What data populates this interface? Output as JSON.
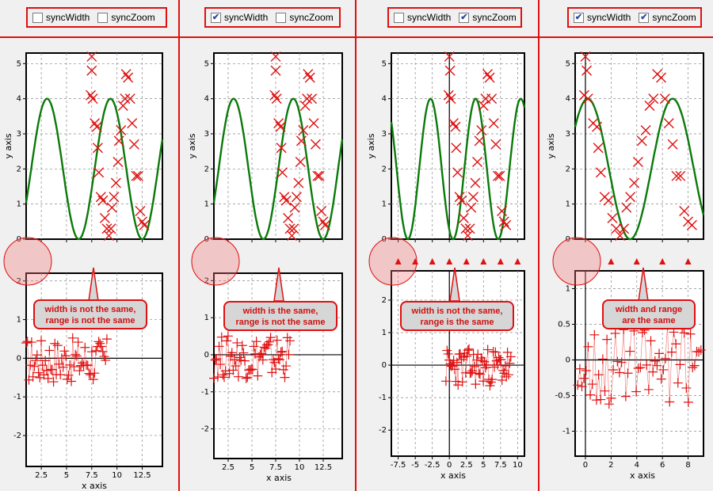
{
  "controls": [
    {
      "syncWidth_label": "syncWidth",
      "syncWidth": false,
      "syncZoom_label": "syncZoom",
      "syncZoom": false
    },
    {
      "syncWidth_label": "syncWidth",
      "syncWidth": true,
      "syncZoom_label": "syncZoom",
      "syncZoom": false
    },
    {
      "syncWidth_label": "syncWidth",
      "syncWidth": false,
      "syncZoom_label": "syncZoom",
      "syncZoom": true
    },
    {
      "syncWidth_label": "syncWidth",
      "syncWidth": true,
      "syncZoom_label": "syncZoom",
      "syncZoom": true
    }
  ],
  "callouts": [
    {
      "line1": "width is not the same,",
      "line2": "range is not the same"
    },
    {
      "line1": "width is the same,",
      "line2": "range is not the same"
    },
    {
      "line1": "width is not the same,",
      "line2": "range is the same"
    },
    {
      "line1": "width and range",
      "line2": "are the same"
    }
  ],
  "colors": {
    "curve": "#0a7a0a",
    "markers": "#e01010",
    "grid": "#888888",
    "highlight": "#e01010"
  },
  "chart_data": [
    {
      "type": "line",
      "panel": 1,
      "top": {
        "xlabel": "",
        "ylabel": "y axis",
        "xlim": [
          1,
          14.5
        ],
        "ylim": [
          0,
          5.3
        ],
        "yticks": [
          0,
          1,
          2,
          3,
          4,
          5
        ],
        "series": [
          {
            "kind": "line",
            "formula": "2+2*sin(x-1.5)"
          },
          {
            "kind": "scatter",
            "points": [
              [
                7.5,
                5.2
              ],
              [
                7.5,
                4.8
              ],
              [
                7.4,
                4.1
              ],
              [
                7.6,
                4.0
              ],
              [
                7.8,
                3.3
              ],
              [
                8.0,
                3.2
              ],
              [
                8.1,
                2.6
              ],
              [
                8.2,
                1.9
              ],
              [
                8.4,
                1.2
              ],
              [
                8.6,
                1.1
              ],
              [
                8.8,
                0.6
              ],
              [
                9.0,
                0.3
              ],
              [
                9.2,
                0.1
              ],
              [
                9.4,
                0.3
              ],
              [
                9.5,
                0.9
              ],
              [
                9.7,
                1.2
              ],
              [
                9.9,
                1.6
              ],
              [
                10.1,
                2.2
              ],
              [
                10.2,
                2.8
              ],
              [
                10.4,
                3.1
              ],
              [
                10.6,
                3.8
              ],
              [
                10.8,
                4.0
              ],
              [
                10.9,
                4.7
              ],
              [
                11.1,
                4.6
              ],
              [
                11.3,
                4.0
              ],
              [
                11.5,
                3.3
              ],
              [
                11.7,
                2.7
              ],
              [
                11.9,
                1.8
              ],
              [
                12.1,
                1.8
              ],
              [
                12.3,
                0.8
              ],
              [
                12.5,
                0.5
              ],
              [
                12.7,
                0.4
              ]
            ]
          }
        ]
      },
      "bottom": {
        "xlabel": "x axis",
        "ylabel": "",
        "xlim": [
          1,
          14.5
        ],
        "ylim": [
          -2.8,
          2.2
        ],
        "xticks": [
          2.5,
          5,
          7.5,
          10,
          12.5
        ],
        "yticks": [
          -2,
          -1,
          0,
          1,
          2
        ],
        "series": [
          {
            "kind": "noise",
            "xrange": [
              1,
              9
            ],
            "amp": 0.9
          }
        ]
      }
    },
    {
      "type": "line",
      "panel": 2,
      "top": {
        "xlabel": "",
        "ylabel": "y axis",
        "xlim": [
          1,
          14.5
        ],
        "ylim": [
          0,
          5.3
        ],
        "yticks": [
          0,
          1,
          2,
          3,
          4,
          5
        ],
        "series": [
          {
            "kind": "line",
            "formula": "2+2*sin(x-1.5)"
          },
          {
            "kind": "scatter",
            "points": [
              [
                7.5,
                5.2
              ],
              [
                7.5,
                4.8
              ],
              [
                7.4,
                4.1
              ],
              [
                7.6,
                4.0
              ],
              [
                7.8,
                3.3
              ],
              [
                8.0,
                3.2
              ],
              [
                8.1,
                2.6
              ],
              [
                8.2,
                1.9
              ],
              [
                8.4,
                1.2
              ],
              [
                8.6,
                1.1
              ],
              [
                8.8,
                0.6
              ],
              [
                9.0,
                0.3
              ],
              [
                9.2,
                0.1
              ],
              [
                9.4,
                0.3
              ],
              [
                9.5,
                0.9
              ],
              [
                9.7,
                1.2
              ],
              [
                9.9,
                1.6
              ],
              [
                10.1,
                2.2
              ],
              [
                10.2,
                2.8
              ],
              [
                10.4,
                3.1
              ],
              [
                10.6,
                3.8
              ],
              [
                10.8,
                4.0
              ],
              [
                10.9,
                4.7
              ],
              [
                11.1,
                4.6
              ],
              [
                11.3,
                4.0
              ],
              [
                11.5,
                3.3
              ],
              [
                11.7,
                2.7
              ],
              [
                11.9,
                1.8
              ],
              [
                12.1,
                1.8
              ],
              [
                12.3,
                0.8
              ],
              [
                12.5,
                0.5
              ],
              [
                12.7,
                0.4
              ]
            ]
          }
        ]
      },
      "bottom": {
        "xlabel": "x axis",
        "ylabel": "",
        "xlim": [
          1,
          14.5
        ],
        "ylim": [
          -2.8,
          2.2
        ],
        "xticks": [
          2.5,
          5,
          7.5,
          10,
          12.5
        ],
        "yticks": [
          -2,
          -1,
          0,
          1,
          2
        ],
        "series": [
          {
            "kind": "noise",
            "xrange": [
              1,
              9
            ],
            "amp": 0.9
          }
        ]
      }
    },
    {
      "type": "line",
      "panel": 3,
      "top": {
        "xlabel": "",
        "ylabel": "y axis",
        "xlim": [
          -8.5,
          11
        ],
        "ylim": [
          0,
          5.3
        ],
        "yticks": [
          0,
          1,
          2,
          3,
          4,
          5
        ],
        "series": [
          {
            "kind": "line",
            "formula": "2+2*sin((x+6)*0.95-1.5)"
          },
          {
            "kind": "scatter",
            "points": [
              [
                0,
                5.2
              ],
              [
                0.1,
                4.8
              ],
              [
                -0.1,
                4.1
              ],
              [
                0.2,
                4.0
              ],
              [
                0.6,
                3.3
              ],
              [
                0.9,
                3.2
              ],
              [
                1.0,
                2.6
              ],
              [
                1.2,
                1.9
              ],
              [
                1.5,
                1.2
              ],
              [
                1.8,
                1.1
              ],
              [
                2.1,
                0.6
              ],
              [
                2.4,
                0.3
              ],
              [
                2.7,
                0.1
              ],
              [
                3.0,
                0.3
              ],
              [
                3.2,
                0.9
              ],
              [
                3.5,
                1.2
              ],
              [
                3.8,
                1.6
              ],
              [
                4.1,
                2.2
              ],
              [
                4.4,
                2.8
              ],
              [
                4.7,
                3.1
              ],
              [
                5.0,
                3.8
              ],
              [
                5.3,
                4.0
              ],
              [
                5.6,
                4.7
              ],
              [
                5.9,
                4.6
              ],
              [
                6.2,
                4.0
              ],
              [
                6.5,
                3.3
              ],
              [
                6.8,
                2.7
              ],
              [
                7.1,
                1.8
              ],
              [
                7.4,
                1.8
              ],
              [
                7.7,
                0.8
              ],
              [
                8.0,
                0.5
              ],
              [
                8.3,
                0.4
              ]
            ]
          }
        ]
      },
      "bottom": {
        "xlabel": "x axis",
        "ylabel": "",
        "xlim": [
          -8.5,
          11
        ],
        "ylim": [
          -2.8,
          2.9
        ],
        "xticks": [
          -7.5,
          -5,
          -2.5,
          0,
          2.5,
          5,
          7.5,
          10
        ],
        "yticks": [
          -2,
          -1,
          0,
          1,
          2
        ],
        "series": [
          {
            "kind": "noise",
            "xrange": [
              -0.5,
              9
            ],
            "amp": 0.9
          }
        ]
      }
    },
    {
      "type": "line",
      "panel": 4,
      "top": {
        "xlabel": "",
        "ylabel": "y axis",
        "xlim": [
          -0.8,
          9.2
        ],
        "ylim": [
          0,
          5.3
        ],
        "yticks": [
          0,
          1,
          2,
          3,
          4,
          5
        ],
        "series": [
          {
            "kind": "line",
            "formula": "2+2*sin(x*0.95+1.4)"
          },
          {
            "kind": "scatter",
            "points": [
              [
                0,
                5.2
              ],
              [
                0.1,
                4.8
              ],
              [
                -0.1,
                4.1
              ],
              [
                0.2,
                4.0
              ],
              [
                0.6,
                3.3
              ],
              [
                0.9,
                3.2
              ],
              [
                1.0,
                2.6
              ],
              [
                1.2,
                1.9
              ],
              [
                1.5,
                1.2
              ],
              [
                1.8,
                1.1
              ],
              [
                2.1,
                0.6
              ],
              [
                2.4,
                0.3
              ],
              [
                2.7,
                0.1
              ],
              [
                3.0,
                0.3
              ],
              [
                3.2,
                0.9
              ],
              [
                3.5,
                1.2
              ],
              [
                3.8,
                1.6
              ],
              [
                4.1,
                2.2
              ],
              [
                4.4,
                2.8
              ],
              [
                4.7,
                3.1
              ],
              [
                5.0,
                3.8
              ],
              [
                5.3,
                4.0
              ],
              [
                5.6,
                4.7
              ],
              [
                5.9,
                4.6
              ],
              [
                6.2,
                4.0
              ],
              [
                6.5,
                3.3
              ],
              [
                6.8,
                2.7
              ],
              [
                7.1,
                1.8
              ],
              [
                7.4,
                1.8
              ],
              [
                7.7,
                0.8
              ],
              [
                8.0,
                0.5
              ],
              [
                8.3,
                0.4
              ]
            ]
          }
        ]
      },
      "bottom": {
        "xlabel": "x axis",
        "ylabel": "",
        "xlim": [
          -0.8,
          9.2
        ],
        "ylim": [
          -1.35,
          1.25
        ],
        "xticks": [
          0,
          2,
          4,
          6,
          8
        ],
        "yticks": [
          -1,
          -0.5,
          0,
          0.5,
          1
        ],
        "series": [
          {
            "kind": "noise",
            "xrange": [
              -0.6,
              9
            ],
            "amp": 0.9
          }
        ]
      }
    }
  ]
}
